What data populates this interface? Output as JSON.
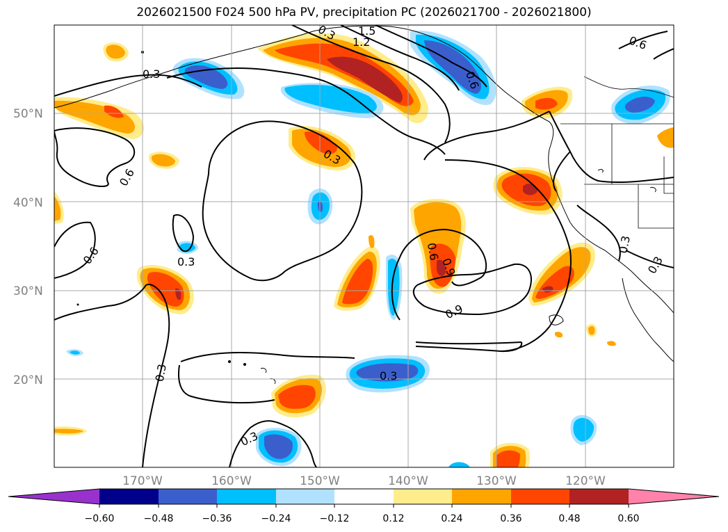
{
  "title": "2026021500 F024 500 hPa PV, precipitation PC (2026021700 - 2026021800)",
  "map": {
    "lon_labels": [
      "170°W",
      "160°W",
      "150°W",
      "140°W",
      "130°W",
      "120°W"
    ],
    "lat_labels": [
      "50°N",
      "40°N",
      "30°N",
      "20°N"
    ],
    "contour_labels": [
      "0.3",
      "0.6",
      "0.6",
      "0.6",
      "0.3",
      "0.3",
      "0.3",
      "0.3",
      "0.3",
      "0.6",
      "0.9",
      "0.9",
      "0.3",
      "1.2",
      "1.5",
      "0.6",
      "0.3",
      "0.3"
    ]
  },
  "colorbar": {
    "colors": [
      "#9932cc",
      "#00008b",
      "#3a5fcd",
      "#00bfff",
      "#b0e2ff",
      "#ffffff",
      "#ffec8b",
      "#ffa500",
      "#ff4500",
      "#b22222",
      "#ff82ab"
    ],
    "tick_labels": [
      "−0.60",
      "−0.48",
      "−0.36",
      "−0.24",
      "−0.12",
      "0.12",
      "0.24",
      "0.36",
      "0.48",
      "0.60"
    ]
  }
}
